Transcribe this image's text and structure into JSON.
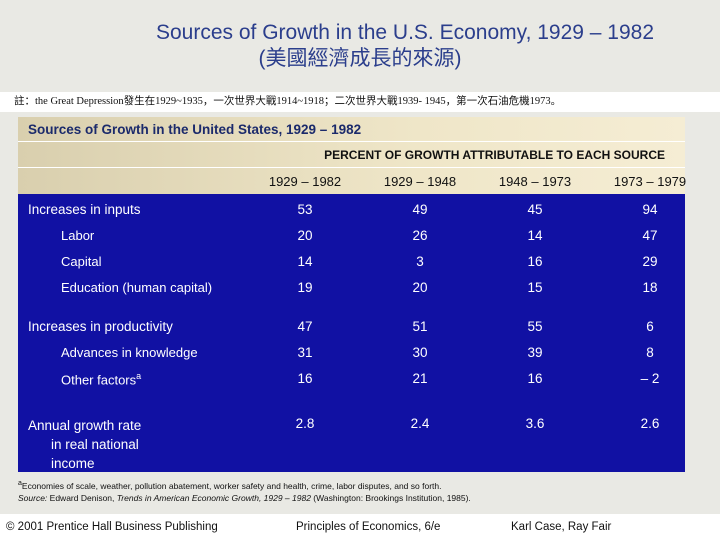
{
  "title": {
    "line1": "Sources of Growth in the U.S. Economy, 1929 – 1982",
    "line2": "(美國經濟成長的來源)"
  },
  "note": "註：the Great Depression發生在1929~1935，一次世界大戰1914~1918；二次世界大戰1939- 1945，第一次石油危機1973。",
  "table": {
    "header": "Sources of Growth in the United States, 1929 – 1982",
    "subheader": "PERCENT OF GROWTH ATTRIBUTABLE TO EACH SOURCE",
    "columns": [
      "1929 – 1982",
      "1929 – 1948",
      "1948 – 1973",
      "1973 – 1979"
    ],
    "rows": [
      {
        "label": "Increases in inputs",
        "values": [
          "53",
          "49",
          "45",
          "94"
        ]
      },
      {
        "label": "Labor",
        "values": [
          "20",
          "26",
          "14",
          "47"
        ]
      },
      {
        "label": "Capital",
        "values": [
          "14",
          "3",
          "16",
          "29"
        ]
      },
      {
        "label": "Education (human capital)",
        "values": [
          "19",
          "20",
          "15",
          "18"
        ]
      },
      {
        "label": "Increases in productivity",
        "values": [
          "47",
          "51",
          "55",
          "6"
        ]
      },
      {
        "label": "Advances in knowledge",
        "values": [
          "31",
          "30",
          "39",
          "8"
        ]
      },
      {
        "label": "Other factors",
        "label_sup": "a",
        "values": [
          "16",
          "21",
          "16",
          "– 2"
        ]
      },
      {
        "label_lines": [
          "Annual growth rate",
          "in real national",
          "income"
        ],
        "values": [
          "2.8",
          "2.4",
          "3.6",
          "2.6"
        ]
      }
    ]
  },
  "footnote": {
    "a_sup": "a",
    "a_text": "Economies of scale, weather, pollution abatement, worker safety and health, crime, labor disputes, and so forth.",
    "source_label": "Source:",
    "source_pre": " Edward Denison, ",
    "source_title": "Trends in American Economic Growth, 1929 – 1982",
    "source_post": " (Washington: Brookings Institution, 1985)."
  },
  "footer": {
    "left": "© 2001 Prentice Hall Business Publishing",
    "center": "Principles of Economics, 6/e",
    "right": "Karl Case, Ray Fair"
  }
}
